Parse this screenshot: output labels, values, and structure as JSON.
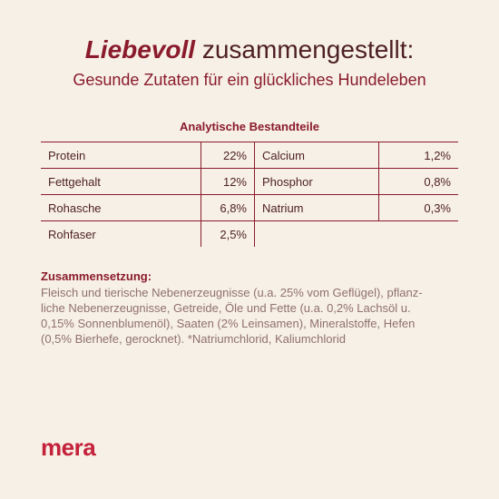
{
  "header": {
    "title_bold": "Liebevoll",
    "title_rest": " zusammengestellt:",
    "subtitle": "Gesunde Zutaten für ein glückliches Hundeleben"
  },
  "analysis": {
    "title": "Analytische Bestandteile",
    "rows": [
      {
        "n1": "Protein",
        "v1": "22%",
        "n2": "Calcium",
        "v2": "1,2%"
      },
      {
        "n1": "Fettgehalt",
        "v1": "12%",
        "n2": "Phosphor",
        "v2": "0,8%"
      },
      {
        "n1": "Rohasche",
        "v1": "6,8%",
        "n2": "Natrium",
        "v2": "0,3%"
      },
      {
        "n1": "Rohfaser",
        "v1": "2,5%"
      }
    ]
  },
  "composition": {
    "heading": "Zusammensetzung:",
    "text": "Fleisch und tierische Nebenerzeugnisse (u.a. 25% vom Geflügel), pflanz-\nliche Nebenerzeugnisse, Getreide, Öle und Fette (u.a. 0,2% Lachsöl u.\n0,15% Sonnenblumenöl), Saaten (2% Leinsamen), Mineralstoffe, Hefen\n(0,5% Bierhefe, gerocknet). *Natriumchlorid, Kaliumchlorid"
  },
  "brand": {
    "logo": "mera"
  }
}
